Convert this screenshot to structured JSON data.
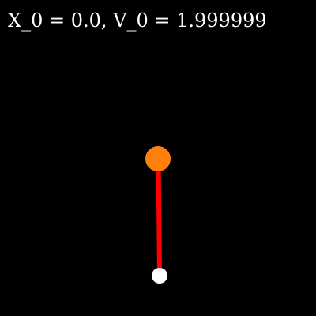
{
  "readout": {
    "text": "X_0 = 0.0, V_0 = 1.999999"
  },
  "pendulum": {
    "pivot_color": "#ffffff",
    "rod_color": "#ff0000",
    "bob_color": "#ff7f0e"
  }
}
